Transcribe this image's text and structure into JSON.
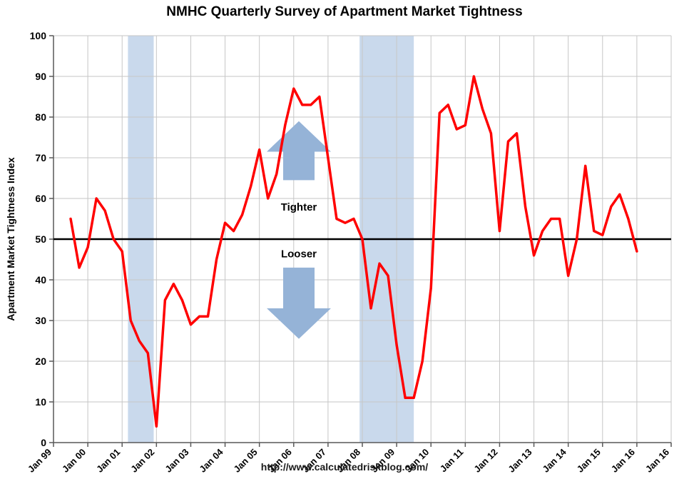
{
  "chart_data": {
    "type": "line",
    "title": "NMHC Quarterly Survey of Apartment Market Tightness",
    "xlabel": "",
    "ylabel": "Apartment Market Tightness Index",
    "ylim": [
      0,
      100
    ],
    "y_tick_step": 10,
    "grid": true,
    "legend": "none",
    "x_tick_labels": [
      "Jan 99",
      "Jan 00",
      "Jan 01",
      "Jan 02",
      "Jan 03",
      "Jan 04",
      "Jan 05",
      "Jan 06",
      "Jan 07",
      "Jan 08",
      "Jan 09",
      "Jan 10",
      "Jan 11",
      "Jan 12",
      "Jan 13",
      "Jan 14",
      "Jan 15",
      "Jan 16",
      "Jan 16"
    ],
    "series": [
      {
        "name": "Apartment Market Tightness Index",
        "color": "#ff0000",
        "quarters": [
          "1999-Q3",
          "1999-Q4",
          "2000-Q1",
          "2000-Q2",
          "2000-Q3",
          "2000-Q4",
          "2001-Q1",
          "2001-Q2",
          "2001-Q3",
          "2001-Q4",
          "2002-Q1",
          "2002-Q2",
          "2002-Q3",
          "2002-Q4",
          "2003-Q1",
          "2003-Q2",
          "2003-Q3",
          "2003-Q4",
          "2004-Q1",
          "2004-Q2",
          "2004-Q3",
          "2004-Q4",
          "2005-Q1",
          "2005-Q2",
          "2005-Q3",
          "2005-Q4",
          "2006-Q1",
          "2006-Q2",
          "2006-Q3",
          "2006-Q4",
          "2007-Q1",
          "2007-Q2",
          "2007-Q3",
          "2007-Q4",
          "2008-Q1",
          "2008-Q2",
          "2008-Q3",
          "2008-Q4",
          "2009-Q1",
          "2009-Q2",
          "2009-Q3",
          "2009-Q4",
          "2010-Q1",
          "2010-Q2",
          "2010-Q3",
          "2010-Q4",
          "2011-Q1",
          "2011-Q2",
          "2011-Q3",
          "2011-Q4",
          "2012-Q1",
          "2012-Q2",
          "2012-Q3",
          "2012-Q4",
          "2013-Q1",
          "2013-Q2",
          "2013-Q3",
          "2013-Q4",
          "2014-Q1",
          "2014-Q2",
          "2014-Q3",
          "2014-Q4",
          "2015-Q1",
          "2015-Q2",
          "2015-Q3",
          "2015-Q4",
          "2016-Q1"
        ],
        "values": [
          55,
          43,
          48,
          60,
          57,
          50,
          47,
          30,
          25,
          22,
          4,
          35,
          39,
          35,
          29,
          31,
          31,
          45,
          54,
          52,
          56,
          63,
          72,
          60,
          66,
          78,
          87,
          83,
          83,
          85,
          70,
          55,
          54,
          55,
          50,
          33,
          44,
          41,
          24,
          11,
          11,
          20,
          38,
          81,
          83,
          77,
          78,
          90,
          82,
          76,
          52,
          74,
          76,
          58,
          46,
          52,
          55,
          55,
          41,
          50,
          68,
          52,
          51,
          58,
          61,
          55,
          47
        ]
      }
    ],
    "reference_line": {
      "value": 50,
      "color": "#000000"
    },
    "recession_bands": {
      "color": "#c9d9ec",
      "ranges": [
        {
          "from": 2001.17,
          "to": 2001.92
        },
        {
          "from": 2007.92,
          "to": 2009.5
        }
      ]
    },
    "annotations": {
      "arrow_color": "#95b3d7",
      "tighter_label": "Tighter",
      "looser_label": "Looser"
    },
    "colors": {
      "gridline": "#c6c6c6",
      "axis": "#595959",
      "text": "#000000"
    }
  },
  "footer": {
    "url_text": "http://www.calculatedriskblog.com/"
  }
}
